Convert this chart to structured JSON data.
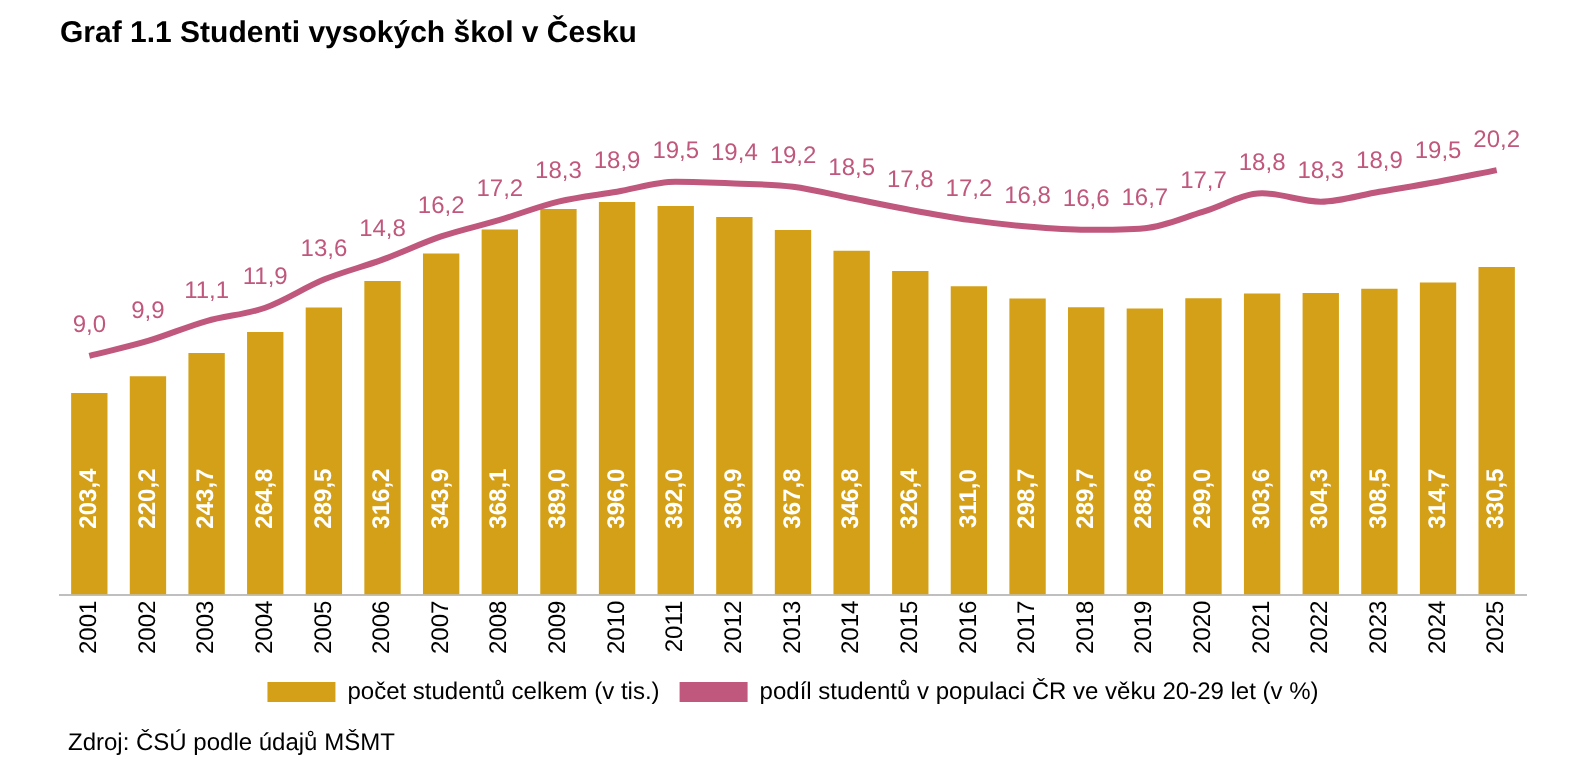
{
  "chart_data": {
    "type": "bar",
    "title": "Graf 1.1 Studenti vysokých škol v Česku",
    "categories": [
      "2001",
      "2002",
      "2003",
      "2004",
      "2005",
      "2006",
      "2007",
      "2008",
      "2009",
      "2010",
      "2011",
      "2012",
      "2013",
      "2014",
      "2015",
      "2016",
      "2017",
      "2018",
      "2019",
      "2020",
      "2021",
      "2022",
      "2023",
      "2024",
      "2025"
    ],
    "series": [
      {
        "name": "počet studentů celkem (v tis.)",
        "color": "#d4a017",
        "values": [
          203.4,
          220.2,
          243.7,
          264.8,
          289.5,
          316.2,
          343.9,
          368.1,
          389.0,
          396.0,
          392.0,
          380.9,
          367.8,
          346.8,
          326.4,
          311.0,
          298.7,
          289.7,
          288.6,
          299.0,
          303.6,
          304.3,
          308.5,
          314.7,
          330.5
        ],
        "value_labels": [
          "203,4",
          "220,2",
          "243,7",
          "264,8",
          "289,5",
          "316,2",
          "343,9",
          "368,1",
          "389,0",
          "396,0",
          "392,0",
          "380,9",
          "367,8",
          "346,8",
          "326,4",
          "311,0",
          "298,7",
          "289,7",
          "288,6",
          "299,0",
          "303,6",
          "304,3",
          "308,5",
          "314,7",
          "330,5"
        ]
      },
      {
        "type": "line",
        "axis": "y2",
        "name": "podíl studentů v populaci ČR ve věku 20-29 let (v %)",
        "color": "#c0587e",
        "values": [
          9.0,
          9.9,
          11.1,
          11.9,
          13.6,
          14.8,
          16.2,
          17.2,
          18.3,
          18.9,
          19.5,
          19.4,
          19.2,
          18.5,
          17.8,
          17.2,
          16.8,
          16.6,
          16.7,
          17.7,
          18.8,
          18.3,
          18.9,
          19.5,
          20.2
        ],
        "value_labels": [
          "9,0",
          "9,9",
          "11,1",
          "11,9",
          "13,6",
          "14,8",
          "16,2",
          "17,2",
          "18,3",
          "18,9",
          "19,5",
          "19,4",
          "19,2",
          "18,5",
          "17,8",
          "17,2",
          "16,8",
          "16,6",
          "16,7",
          "17,7",
          "18,8",
          "18,3",
          "18,9",
          "19,5",
          "20,2"
        ]
      }
    ],
    "marker": "none",
    "grid": false,
    "legend": "bottom",
    "tick_labels": "x",
    "annotations": [
      "Zdroj: ČSÚ podle údajů MŠMT"
    ]
  }
}
